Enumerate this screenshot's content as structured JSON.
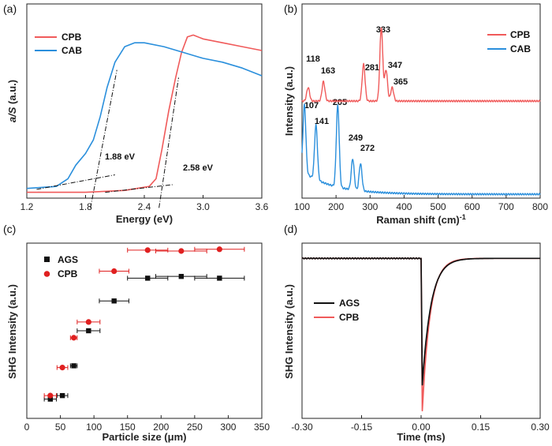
{
  "colors": {
    "red": "#f05a5a",
    "blue": "#2a8fdc",
    "black": "#111111"
  },
  "chart_data": [
    {
      "id": "a",
      "panel_label": "(a)",
      "type": "line",
      "xlabel": "Energy (eV)",
      "ylabel_italic": "a/S",
      "ylabel_rest": " (a.u.)",
      "xlim": [
        1.2,
        3.6
      ],
      "ylim": [
        0,
        1
      ],
      "xticks": [
        "1.2",
        "1.8",
        "2.4",
        "3.0",
        "3.6"
      ],
      "legend": [
        "CPB",
        "CAB"
      ],
      "annotations": [
        "1.88 eV",
        "2.58 eV"
      ],
      "series": [
        {
          "name": "CPB",
          "color": "#f05a5a",
          "x": [
            1.2,
            1.8,
            2.2,
            2.45,
            2.52,
            2.58,
            2.65,
            2.72,
            2.78,
            2.84,
            2.9,
            3.0,
            3.2,
            3.4,
            3.6
          ],
          "y": [
            0.03,
            0.03,
            0.04,
            0.06,
            0.1,
            0.25,
            0.45,
            0.62,
            0.75,
            0.83,
            0.84,
            0.82,
            0.8,
            0.78,
            0.76
          ]
        },
        {
          "name": "CAB",
          "color": "#2a8fdc",
          "x": [
            1.2,
            1.5,
            1.62,
            1.7,
            1.8,
            1.88,
            1.95,
            2.02,
            2.1,
            2.2,
            2.3,
            2.4,
            2.6,
            2.8,
            3.0,
            3.2,
            3.4,
            3.6
          ],
          "y": [
            0.05,
            0.06,
            0.1,
            0.17,
            0.23,
            0.3,
            0.42,
            0.57,
            0.7,
            0.78,
            0.8,
            0.8,
            0.78,
            0.75,
            0.72,
            0.7,
            0.67,
            0.63
          ]
        }
      ],
      "fits": [
        {
          "x": [
            1.3,
            2.1
          ],
          "y": [
            0.045,
            0.12
          ]
        },
        {
          "x": [
            1.85,
            2.12
          ],
          "y": [
            -0.05,
            0.66
          ]
        },
        {
          "x": [
            2.0,
            2.7
          ],
          "y": [
            0.03,
            0.07
          ]
        },
        {
          "x": [
            2.55,
            2.75
          ],
          "y": [
            -0.05,
            0.62
          ]
        }
      ]
    },
    {
      "id": "b",
      "panel_label": "(b)",
      "type": "line",
      "xlabel": "Raman shift (cm)",
      "xlabel_sup": "-1",
      "ylabel": "Intensity (a.u.)",
      "xlim": [
        100,
        800
      ],
      "ylim": [
        0,
        1
      ],
      "xticks": [
        "100",
        "200",
        "300",
        "400",
        "500",
        "600",
        "700",
        "800"
      ],
      "legend": [
        "CPB",
        "CAB"
      ],
      "series": [
        {
          "name": "CPB",
          "color": "#f05a5a",
          "base": 0.5,
          "peaks": [
            [
              118,
              0.07
            ],
            [
              163,
              0.1
            ],
            [
              281,
              0.19
            ],
            [
              333,
              0.38
            ],
            [
              347,
              0.16
            ],
            [
              365,
              0.07
            ]
          ],
          "labels": [
            "118",
            "163",
            "281",
            "333",
            "347",
            "365"
          ]
        },
        {
          "name": "CAB",
          "color": "#2a8fdc",
          "base": 0.02,
          "peaks": [
            [
              107,
              0.35
            ],
            [
              141,
              0.28
            ],
            [
              205,
              0.42
            ],
            [
              249,
              0.16
            ],
            [
              272,
              0.14
            ]
          ],
          "labels": [
            "107",
            "141",
            "205",
            "249",
            "272"
          ]
        }
      ]
    },
    {
      "id": "c",
      "panel_label": "(c)",
      "type": "scatter",
      "xlabel": "Particle size (μm)",
      "ylabel": "SHG Intensity (a.u.)",
      "xlim": [
        0,
        350
      ],
      "ylim": [
        0,
        1
      ],
      "xticks": [
        "0",
        "50",
        "100",
        "150",
        "200",
        "250",
        "300",
        "350"
      ],
      "legend": [
        "AGS",
        "CPB"
      ],
      "series": [
        {
          "name": "AGS",
          "color": "#111111",
          "marker": "square",
          "x": [
            35,
            53,
            70,
            92,
            130,
            180,
            230,
            287
          ],
          "xerr": [
            9,
            8,
            5,
            17,
            22,
            30,
            38,
            37
          ],
          "y": [
            0.11,
            0.13,
            0.3,
            0.5,
            0.67,
            0.8,
            0.81,
            0.8
          ]
        },
        {
          "name": "CPB",
          "color": "#e02020",
          "marker": "circle",
          "x": [
            35,
            53,
            70,
            92,
            130,
            180,
            230,
            287
          ],
          "xerr": [
            9,
            8,
            5,
            17,
            22,
            30,
            38,
            37
          ],
          "y": [
            0.13,
            0.29,
            0.46,
            0.55,
            0.84,
            0.96,
            0.955,
            0.965
          ]
        }
      ]
    },
    {
      "id": "d",
      "panel_label": "(d)",
      "type": "line",
      "xlabel": "Time (ms)",
      "ylabel": "SHG Intensity (a.u.)",
      "xlim": [
        -0.3,
        0.3
      ],
      "ylim": [
        -1.05,
        0.1
      ],
      "xticks": [
        "-0.30",
        "-0.15",
        "0.00",
        "0.15",
        "0.30"
      ],
      "legend": [
        "AGS",
        "CPB"
      ],
      "series": [
        {
          "name": "AGS",
          "color": "#111111",
          "depth": -0.83,
          "tau": 0.022
        },
        {
          "name": "CPB",
          "color": "#f05a5a",
          "depth": -1.0,
          "tau": 0.02
        }
      ]
    }
  ]
}
